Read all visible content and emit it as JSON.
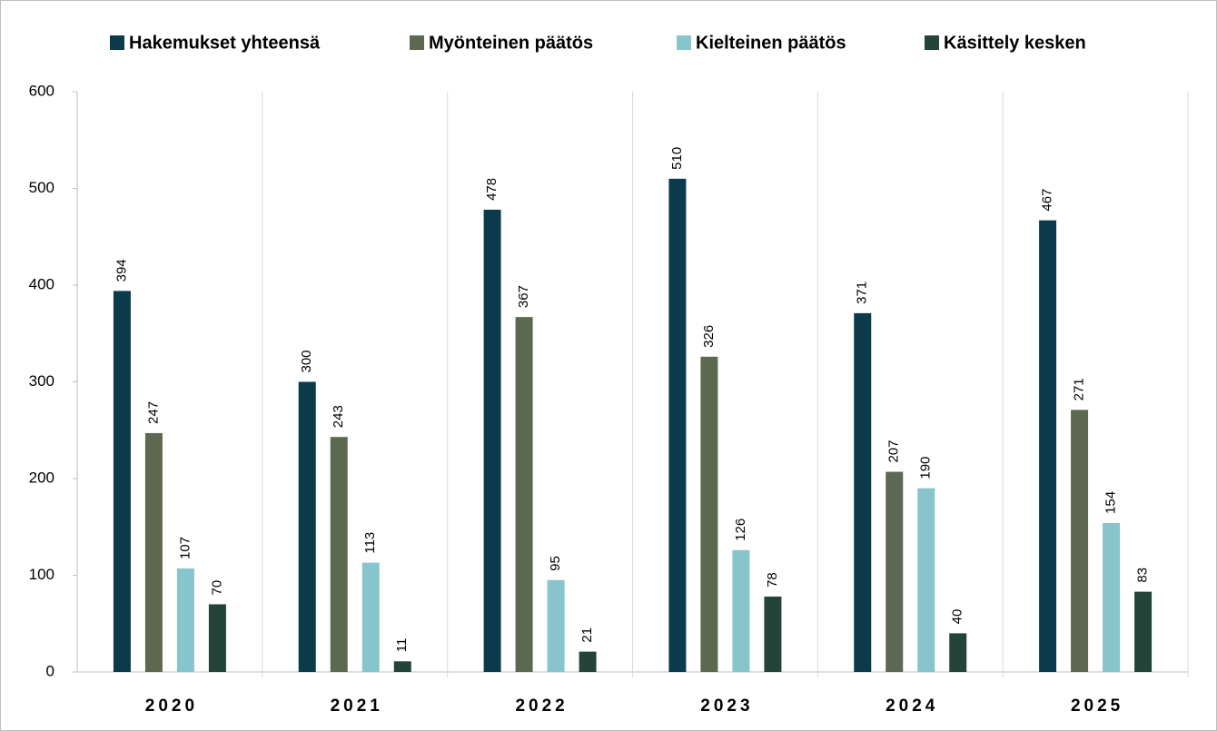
{
  "chart_data": {
    "type": "bar",
    "categories": [
      "2020",
      "2021",
      "2022",
      "2023",
      "2024",
      "2025"
    ],
    "series": [
      {
        "name": "Hakemukset yhteensä",
        "color": "#0b3a4a",
        "values": [
          394,
          300,
          478,
          510,
          371,
          467
        ]
      },
      {
        "name": "Myönteinen päätös",
        "color": "#5c6850",
        "values": [
          247,
          243,
          367,
          326,
          207,
          271
        ]
      },
      {
        "name": "Kielteinen päätös",
        "color": "#87c4cc",
        "values": [
          107,
          113,
          95,
          126,
          190,
          154
        ]
      },
      {
        "name": "Käsittely kesken",
        "color": "#24443a",
        "values": [
          70,
          11,
          21,
          78,
          40,
          83
        ]
      }
    ],
    "ylim": [
      0,
      600
    ],
    "yticks": [
      0,
      100,
      200,
      300,
      400,
      500,
      600
    ],
    "legend": "top"
  }
}
